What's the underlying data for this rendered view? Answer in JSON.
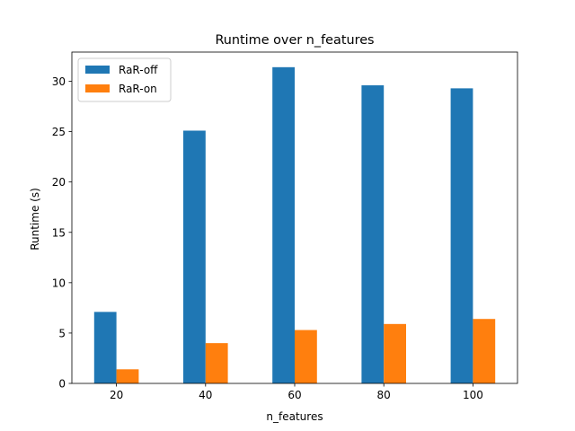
{
  "chart_data": {
    "type": "bar",
    "title": "Runtime over n_features",
    "xlabel": "n_features",
    "ylabel": "Runtime (s)",
    "categories": [
      "20",
      "40",
      "60",
      "80",
      "100"
    ],
    "series": [
      {
        "name": "RaR-off",
        "color": "#1f77b4",
        "values": [
          7.1,
          25.1,
          31.4,
          29.6,
          29.3
        ]
      },
      {
        "name": "RaR-on",
        "color": "#ff7f0e",
        "values": [
          1.4,
          4.0,
          5.3,
          5.9,
          6.4
        ]
      }
    ],
    "ylim": [
      0,
      32.9
    ],
    "yticks": [
      0,
      5,
      10,
      15,
      20,
      25,
      30
    ],
    "grid": false,
    "legend_position": "upper-left"
  }
}
